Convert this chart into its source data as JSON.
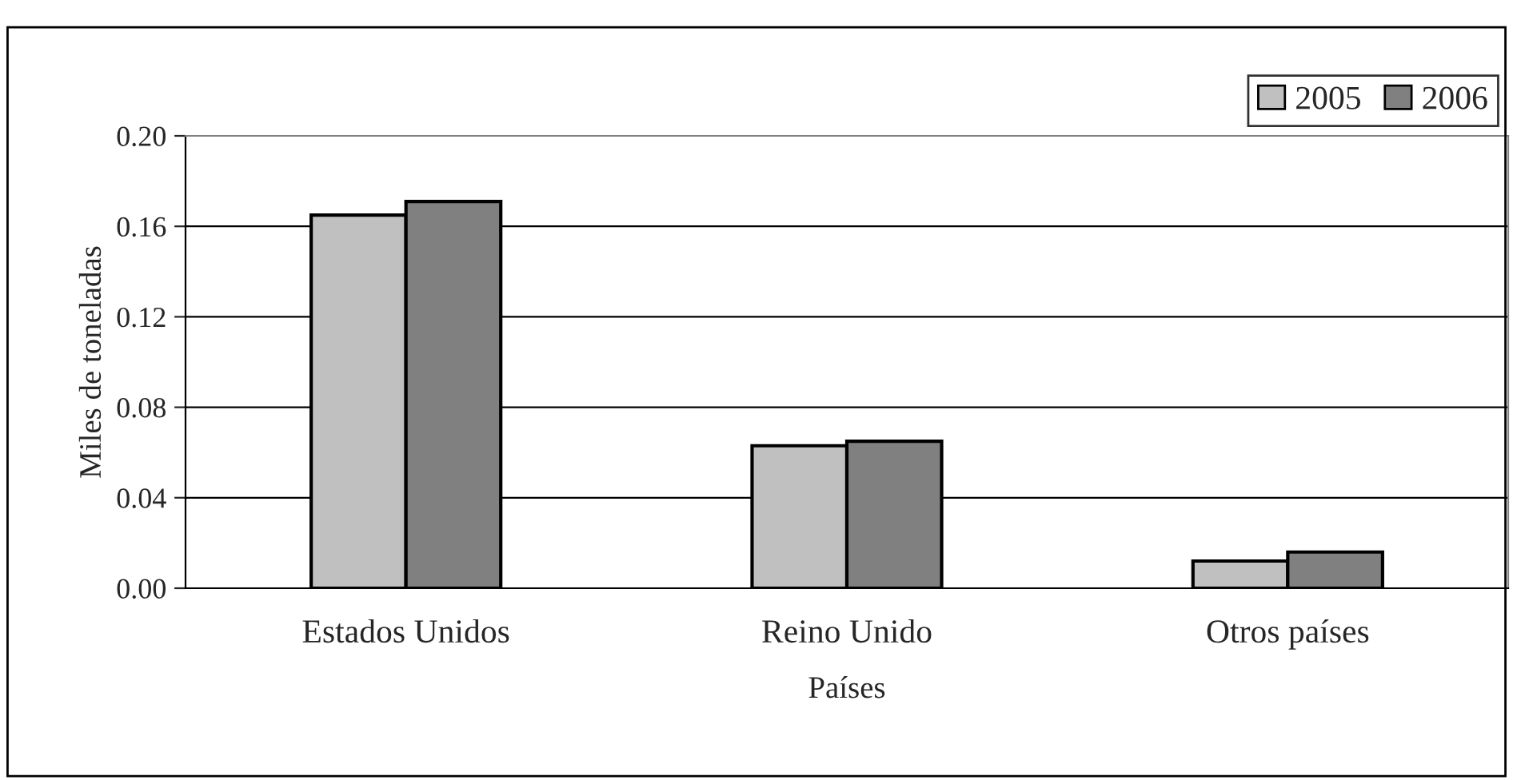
{
  "chart_data": {
    "type": "bar",
    "xlabel": "Países",
    "ylabel": "Miles de toneladas",
    "categories": [
      "Estados Unidos",
      "Reino Unido",
      "Otros países"
    ],
    "series": [
      {
        "name": "2005",
        "color": "#c0c0c0",
        "values": [
          0.165,
          0.063,
          0.012
        ]
      },
      {
        "name": "2006",
        "color": "#808080",
        "values": [
          0.171,
          0.065,
          0.016
        ]
      }
    ],
    "ylim": [
      0,
      0.2
    ],
    "yticks": [
      {
        "value": 0,
        "label": "0.00"
      },
      {
        "value": 0.04,
        "label": "0.04"
      },
      {
        "value": 0.08,
        "label": "0.08"
      },
      {
        "value": 0.12,
        "label": "0.12"
      },
      {
        "value": 0.16,
        "label": "0.16"
      },
      {
        "value": 0.2,
        "label": "0.20"
      }
    ],
    "grid": "y",
    "legend": "top right"
  }
}
